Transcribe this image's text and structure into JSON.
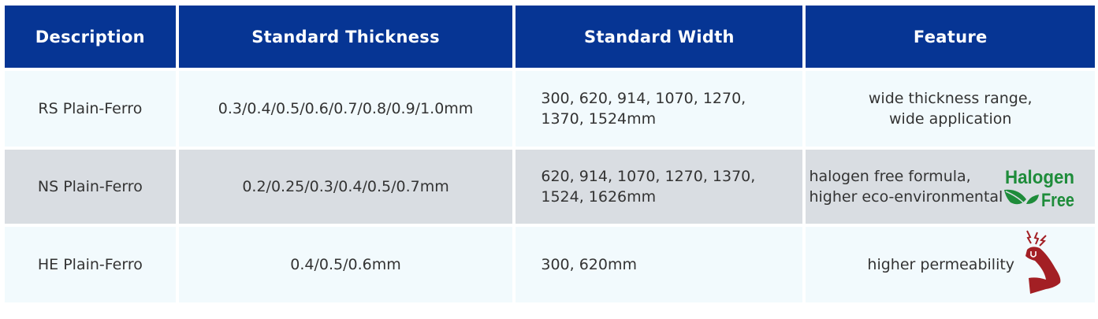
{
  "table": {
    "headers": [
      "Description",
      "Standard Thickness",
      "Standard Width",
      "Feature"
    ],
    "rows": [
      {
        "description": "RS Plain-Ferro",
        "thickness": "0.3/0.4/0.5/0.6/0.7/0.8/0.9/1.0mm",
        "width_line1": "300, 620, 914, 1070, 1270,",
        "width_line2": "1370, 1524mm",
        "feature_line1": "wide thickness range,",
        "feature_line2": "wide application"
      },
      {
        "description": "NS Plain-Ferro",
        "thickness": "0.2/0.25/0.3/0.4/0.5/0.7mm",
        "width_line1": "620, 914, 1070, 1270, 1370,",
        "width_line2": "1524, 1626mm",
        "feature_line1": "halogen free formula,",
        "feature_line2": "higher eco-environmental",
        "icon": "halogen-free-leaf-icon",
        "icon_text": [
          "Halogen",
          "Free"
        ]
      },
      {
        "description": "HE Plain-Ferro",
        "thickness": "0.4/0.5/0.6mm",
        "width_line1": "300, 620mm",
        "feature_line1": "higher permeability",
        "icon": "strong-arm-magnet-icon"
      }
    ]
  },
  "colors": {
    "header_bg": "#063594",
    "row_light": "#f2fafd",
    "row_gray": "#d9dde2",
    "halogen_green": "#1e8c3a",
    "arm_red": "#a31f24"
  }
}
